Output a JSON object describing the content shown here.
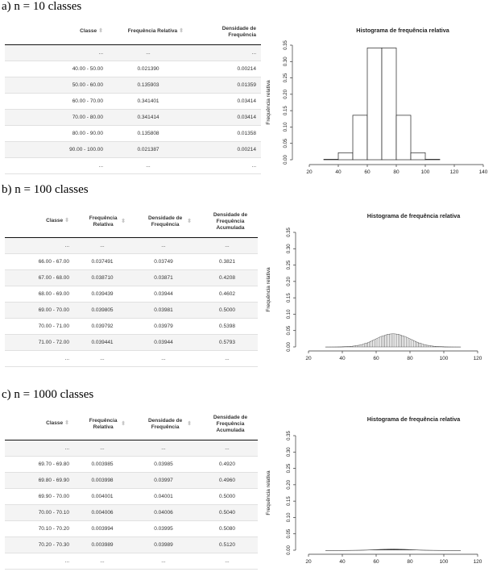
{
  "sections": [
    {
      "title": "a) n = 10 classes",
      "columns": [
        "Classe",
        "Frequência Relativa",
        "Densidade de Frequência"
      ],
      "rows": [
        [
          "...",
          "...",
          "..."
        ],
        [
          "40.00 - 50.00",
          "0.021390",
          "0.00214"
        ],
        [
          "50.00 - 60.00",
          "0.135903",
          "0.01359"
        ],
        [
          "60.00 - 70.00",
          "0.341401",
          "0.03414"
        ],
        [
          "70.00 - 80.00",
          "0.341414",
          "0.03414"
        ],
        [
          "80.00 - 90.00",
          "0.135808",
          "0.01358"
        ],
        [
          "90.00 - 100.00",
          "0.021387",
          "0.00214"
        ],
        [
          "...",
          "...",
          "..."
        ]
      ]
    },
    {
      "title": "b) n = 100 classes",
      "columns": [
        "Classe",
        "Frequência Relativa",
        "Densidade de Frequência",
        "Densidade de Frequência Acumulada"
      ],
      "rows": [
        [
          "...",
          "...",
          "...",
          "..."
        ],
        [
          "66.00 - 67.00",
          "0.037491",
          "0.03749",
          "0.3821"
        ],
        [
          "67.00 - 68.00",
          "0.038710",
          "0.03871",
          "0.4208"
        ],
        [
          "68.00 - 69.00",
          "0.039439",
          "0.03944",
          "0.4602"
        ],
        [
          "69.00 - 70.00",
          "0.039805",
          "0.03981",
          "0.5000"
        ],
        [
          "70.00 - 71.00",
          "0.039792",
          "0.03979",
          "0.5398"
        ],
        [
          "71.00 - 72.00",
          "0.039441",
          "0.03944",
          "0.5793"
        ],
        [
          "...",
          "...",
          "...",
          "..."
        ]
      ]
    },
    {
      "title": "c) n = 1000 classes",
      "columns": [
        "Classe",
        "Frequência Relativa",
        "Densidade de Frequência",
        "Densidade de Frequência Acumulada"
      ],
      "rows": [
        [
          "...",
          "...",
          "...",
          "..."
        ],
        [
          "69.70 - 69.80",
          "0.003985",
          "0.03985",
          "0.4920"
        ],
        [
          "69.80 - 69.90",
          "0.003998",
          "0.03997",
          "0.4960"
        ],
        [
          "69.90 - 70.00",
          "0.004001",
          "0.04001",
          "0.5000"
        ],
        [
          "70.00 - 70.10",
          "0.004006",
          "0.04006",
          "0.5040"
        ],
        [
          "70.10 - 70.20",
          "0.003994",
          "0.03995",
          "0.5080"
        ],
        [
          "70.20 - 70.30",
          "0.003989",
          "0.03989",
          "0.5120"
        ],
        [
          "...",
          "...",
          "...",
          "..."
        ]
      ]
    }
  ],
  "chart_data": [
    {
      "type": "bar",
      "title": "Histograma de frequência relativa",
      "xlabel": "",
      "ylabel": "Frequência relativa",
      "xlim": [
        15,
        140
      ],
      "ylim": [
        0,
        0.35
      ],
      "xticks": [
        20,
        40,
        60,
        80,
        100,
        120,
        140
      ],
      "yticks": [
        0.0,
        0.05,
        0.1,
        0.15,
        0.2,
        0.25,
        0.3,
        0.35
      ],
      "bins": [
        {
          "x0": 30,
          "x1": 40,
          "y": 0.00132
        },
        {
          "x0": 40,
          "x1": 50,
          "y": 0.02139
        },
        {
          "x0": 50,
          "x1": 60,
          "y": 0.135903
        },
        {
          "x0": 60,
          "x1": 70,
          "y": 0.341401
        },
        {
          "x0": 70,
          "x1": 80,
          "y": 0.341414
        },
        {
          "x0": 80,
          "x1": 90,
          "y": 0.135808
        },
        {
          "x0": 90,
          "x1": 100,
          "y": 0.021387
        },
        {
          "x0": 100,
          "x1": 110,
          "y": 0.00132
        }
      ],
      "ytick_labels": [
        "0.00",
        "0.05",
        "0.10",
        "0.15",
        "0.20",
        "0.25",
        "0.30",
        "0.35"
      ]
    },
    {
      "type": "bar",
      "title": "Histograma de frequência relativa",
      "xlabel": "",
      "ylabel": "Frequência relativa",
      "xlim": [
        18,
        130
      ],
      "ylim": [
        0,
        0.35
      ],
      "xticks": [
        20,
        40,
        60,
        80,
        100,
        120
      ],
      "yticks": [
        0.0,
        0.05,
        0.1,
        0.15,
        0.2,
        0.25,
        0.3,
        0.35
      ],
      "distribution": {
        "kind": "normal",
        "mean": 70,
        "sd": 10,
        "bin_width": 1,
        "from": 30,
        "to": 110
      },
      "ytick_labels": [
        "0.00",
        "0.05",
        "0.10",
        "0.15",
        "0.20",
        "0.25",
        "0.30",
        "0.35"
      ]
    },
    {
      "type": "bar",
      "title": "Histograma de frequência relativa",
      "xlabel": "",
      "ylabel": "Frequência relativa",
      "xlim": [
        18,
        130
      ],
      "ylim": [
        0,
        0.35
      ],
      "xticks": [
        20,
        40,
        60,
        80,
        100,
        120
      ],
      "yticks": [
        0.0,
        0.05,
        0.1,
        0.15,
        0.2,
        0.25,
        0.3,
        0.35
      ],
      "distribution": {
        "kind": "normal",
        "mean": 70,
        "sd": 10,
        "bin_width": 0.1,
        "from": 30,
        "to": 110
      },
      "ytick_labels": [
        "0.00",
        "0.05",
        "0.10",
        "0.15",
        "0.20",
        "0.25",
        "0.30",
        "0.35"
      ]
    }
  ]
}
